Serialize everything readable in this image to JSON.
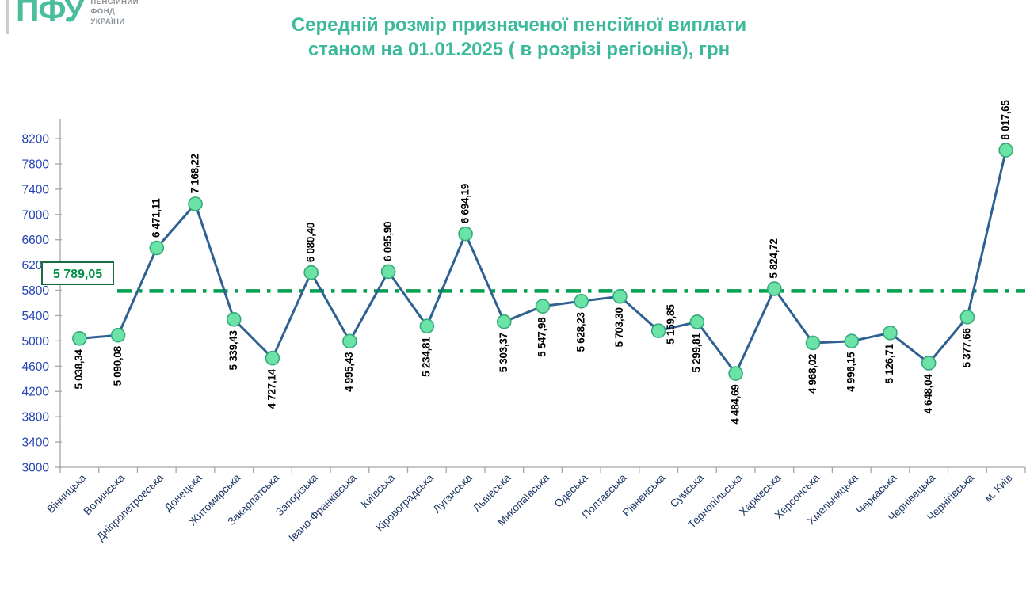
{
  "logo": {
    "abbr": "ПФУ",
    "name_lines": [
      "ПЕНСІЙНИЙ",
      "ФОНД",
      "УКРАЇНИ"
    ]
  },
  "title": {
    "line1": "Середній розмір призначеної пенсійної виплати",
    "line2": "станом на 01.01.2025 ( в розрізі регіонів), грн"
  },
  "chart_data": {
    "type": "line",
    "title": "Середній розмір призначеної пенсійної виплати станом на 01.01.2025 ( в розрізі регіонів), грн",
    "categories": [
      "Вінницька",
      "Волинська",
      "Дніпропетровська",
      "Донецька",
      "Житомирська",
      "Закарпатська",
      "Запорізька",
      "Івано-Франківська",
      "Київська",
      "Кіровоградська",
      "Луганська",
      "Львівська",
      "Миколаївська",
      "Одеська",
      "Полтавська",
      "Рівненська",
      "Сумська",
      "Тернопільська",
      "Харківська",
      "Херсонська",
      "Хмельницька",
      "Черкаська",
      "Чернівецька",
      "Чернігівська",
      "м. Київ"
    ],
    "values": [
      5038.34,
      5090.08,
      6471.11,
      7168.22,
      5339.43,
      4727.14,
      6080.4,
      4995.43,
      6095.9,
      5234.81,
      6694.19,
      5303.37,
      5547.98,
      5628.23,
      5703.3,
      5159.85,
      5299.81,
      4484.69,
      5824.72,
      4968.02,
      4996.15,
      5126.71,
      4648.04,
      5377.66,
      8017.65
    ],
    "value_labels": [
      "5 038,34",
      "5 090,08",
      "6 471,11",
      "7 168,22",
      "5 339,43",
      "4 727,14",
      "6 080,40",
      "4 995,43",
      "6 095,90",
      "5 234,81",
      "6 694,19",
      "5 303,37",
      "5 547,98",
      "5 628,23",
      "5 703,30",
      "5 159,85",
      "5 299,81",
      "4 484,69",
      "5 824,72",
      "4 968,02",
      "4 996,15",
      "5 126,71",
      "4 648,04",
      "5 377,66",
      "8 017,65"
    ],
    "label_side": [
      "below",
      "below",
      "above",
      "above",
      "below",
      "below",
      "above",
      "below",
      "above",
      "below",
      "above",
      "below",
      "below",
      "below",
      "below",
      "right",
      "below",
      "below",
      "above",
      "below",
      "below",
      "below",
      "below",
      "below",
      "above"
    ],
    "average_line": {
      "value": 5789.05,
      "label": "5 789,05"
    },
    "xlabel": "",
    "ylabel": "",
    "ylim": [
      3000,
      8200
    ],
    "y_ticks": [
      3000,
      3400,
      3800,
      4200,
      4600,
      5000,
      5400,
      5800,
      6200,
      6600,
      7000,
      7400,
      7800,
      8200
    ],
    "grid": false,
    "legend": false,
    "colors": {
      "series_line": "#2e6191",
      "marker_fill": "#6ce3a6",
      "marker_stroke": "#35aa7b",
      "average_line": "#00a14e",
      "average_box_border": "#1b6e3c",
      "average_text": "#008f44",
      "y_tick_label": "#2442b5",
      "x_tick_label": "#1f3864",
      "data_label": "#000000",
      "axis": "#a6a6a6",
      "title": "#3bb99a"
    }
  }
}
